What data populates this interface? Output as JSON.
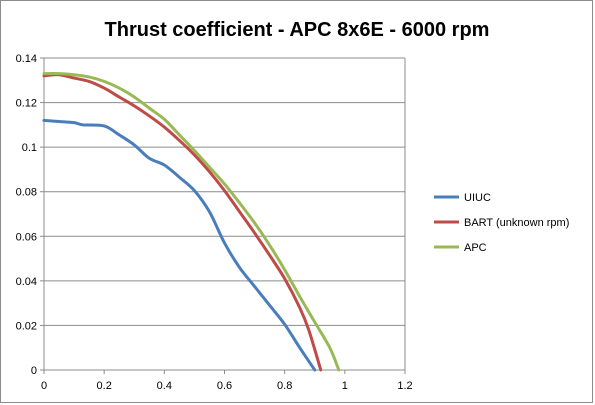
{
  "chart_data": {
    "type": "line",
    "title": "Thrust coefficient - APC 8x6E - 6000 rpm",
    "xlabel": "",
    "ylabel": "",
    "xlim": [
      0,
      1.2
    ],
    "ylim": [
      0,
      0.14
    ],
    "x_ticks": [
      "0",
      "0.2",
      "0.4",
      "0.6",
      "0.8",
      "1",
      "1.2"
    ],
    "y_ticks": [
      "0",
      "0.02",
      "0.04",
      "0.06",
      "0.08",
      "0.1",
      "0.12",
      "0.14"
    ],
    "grid": "horizontal major gridlines",
    "legend_position": "right",
    "series": [
      {
        "name": "UIUC",
        "color": "#4a7ebb",
        "x": [
          0,
          0.05,
          0.1,
          0.13,
          0.2,
          0.25,
          0.3,
          0.35,
          0.4,
          0.45,
          0.5,
          0.55,
          0.6,
          0.65,
          0.7,
          0.75,
          0.8,
          0.85,
          0.9
        ],
        "y": [
          0.112,
          0.1115,
          0.111,
          0.11,
          0.1095,
          0.1055,
          0.101,
          0.095,
          0.092,
          0.0865,
          0.0805,
          0.071,
          0.057,
          0.046,
          0.0375,
          0.029,
          0.0205,
          0.01,
          0
        ]
      },
      {
        "name": "BART (unknown rpm)",
        "color": "#be4b48",
        "x": [
          0,
          0.05,
          0.1,
          0.15,
          0.2,
          0.25,
          0.3,
          0.35,
          0.4,
          0.45,
          0.5,
          0.55,
          0.6,
          0.65,
          0.7,
          0.75,
          0.8,
          0.85,
          0.88,
          0.92
        ],
        "y": [
          0.132,
          0.1325,
          0.131,
          0.1295,
          0.1265,
          0.1225,
          0.1185,
          0.114,
          0.109,
          0.103,
          0.0965,
          0.089,
          0.0805,
          0.071,
          0.0615,
          0.0515,
          0.041,
          0.028,
          0.018,
          0
        ]
      },
      {
        "name": "APC",
        "color": "#98b954",
        "x": [
          0,
          0.05,
          0.1,
          0.15,
          0.2,
          0.25,
          0.3,
          0.35,
          0.4,
          0.45,
          0.5,
          0.55,
          0.6,
          0.65,
          0.7,
          0.75,
          0.8,
          0.85,
          0.9,
          0.95,
          0.98
        ],
        "y": [
          0.133,
          0.133,
          0.1325,
          0.1315,
          0.1295,
          0.1265,
          0.1225,
          0.1175,
          0.1125,
          0.1055,
          0.0985,
          0.091,
          0.0835,
          0.075,
          0.066,
          0.056,
          0.045,
          0.033,
          0.0215,
          0.01,
          0
        ]
      }
    ]
  }
}
